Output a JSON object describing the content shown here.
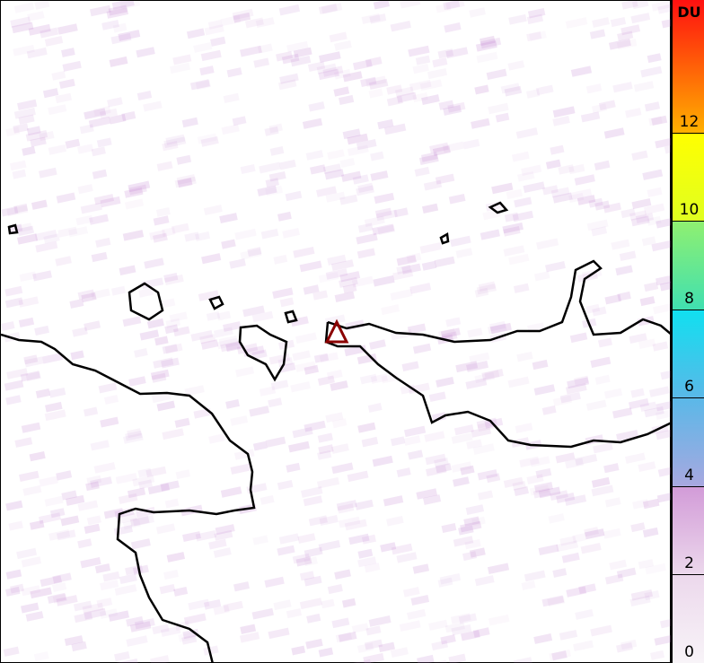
{
  "map": {
    "volcano_marker_color": "#8b0000",
    "coastline_color": "#000000",
    "background": "#ffffff"
  },
  "colorbar": {
    "unit": "DU",
    "min": 0,
    "max": 15,
    "ticks": [
      "0",
      "2",
      "4",
      "6",
      "8",
      "10",
      "12"
    ],
    "colors": [
      [
        "0",
        "#f8f4f8"
      ],
      [
        "2",
        "#ecd8ec"
      ],
      [
        "4",
        "#d29bd8"
      ],
      [
        "4",
        "#a8a8e0"
      ],
      [
        "6",
        "#5ab8e8"
      ],
      [
        "8",
        "#10e0f0"
      ],
      [
        "8",
        "#40e0b0"
      ],
      [
        "10",
        "#90f070"
      ],
      [
        "10",
        "#e0ff20"
      ],
      [
        "12",
        "#ffff00"
      ],
      [
        "12",
        "#ffb000"
      ],
      [
        "15",
        "#ff1010"
      ]
    ]
  }
}
